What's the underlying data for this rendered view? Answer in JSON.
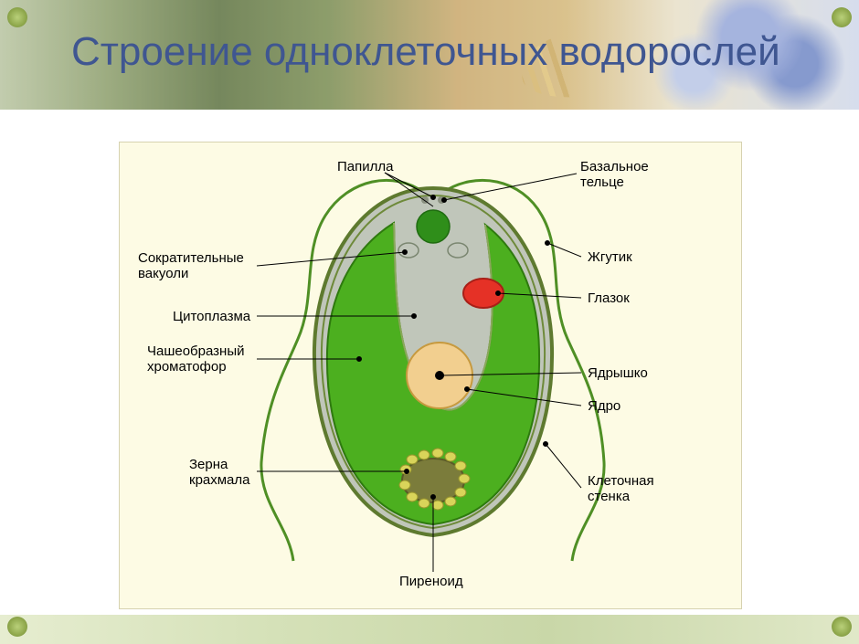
{
  "title": "Строение одноклеточных водорослей",
  "diagram": {
    "background_color": "#fdfbe4",
    "cell": {
      "body_fill": "#c0c6ba",
      "body_stroke": "#5e7a2f",
      "chromatophore_fill": "#4caf1f",
      "chromatophore_stroke": "#2e7a0e",
      "cytoplasm_upper_fill": "#c7cbc1",
      "nucleus_fill": "#f2cf8f",
      "nucleus_stroke": "#c79a3f",
      "nucleolus_fill": "#000000",
      "eyespot_fill": "#e53126",
      "eyespot_stroke": "#a81f17",
      "papilla_fill": "#2f8e1a",
      "vacuole_fill": "#c0c6ba",
      "vacuole_stroke": "#7a8670",
      "pyrenoid_fill": "#7b7c3b",
      "pyrenoid_stroke": "#5a5b28",
      "starch_grain_fill": "#d9d45a",
      "starch_grain_stroke": "#9a962e",
      "flagellum_stroke": "#4f8f25",
      "line_stroke": "#000000",
      "line_width": 1
    },
    "labels": {
      "papilla": "Папилла",
      "basal_body": "Базальное\nтельце",
      "contractile_vacuoles": "Сократительные\nвакуоли",
      "flagellum": "Жгутик",
      "cytoplasm": "Цитоплазма",
      "eyespot": "Глазок",
      "chromatophore": "Чашеобразный\nхроматофор",
      "nucleolus": "Ядрышко",
      "nucleus": "Ядро",
      "starch_grains": "Зерна\nкрахмала",
      "cell_wall": "Клеточная\nстенка",
      "pyrenoid": "Пиреноид"
    },
    "label_fontsize": 15,
    "label_color": "#000000"
  }
}
